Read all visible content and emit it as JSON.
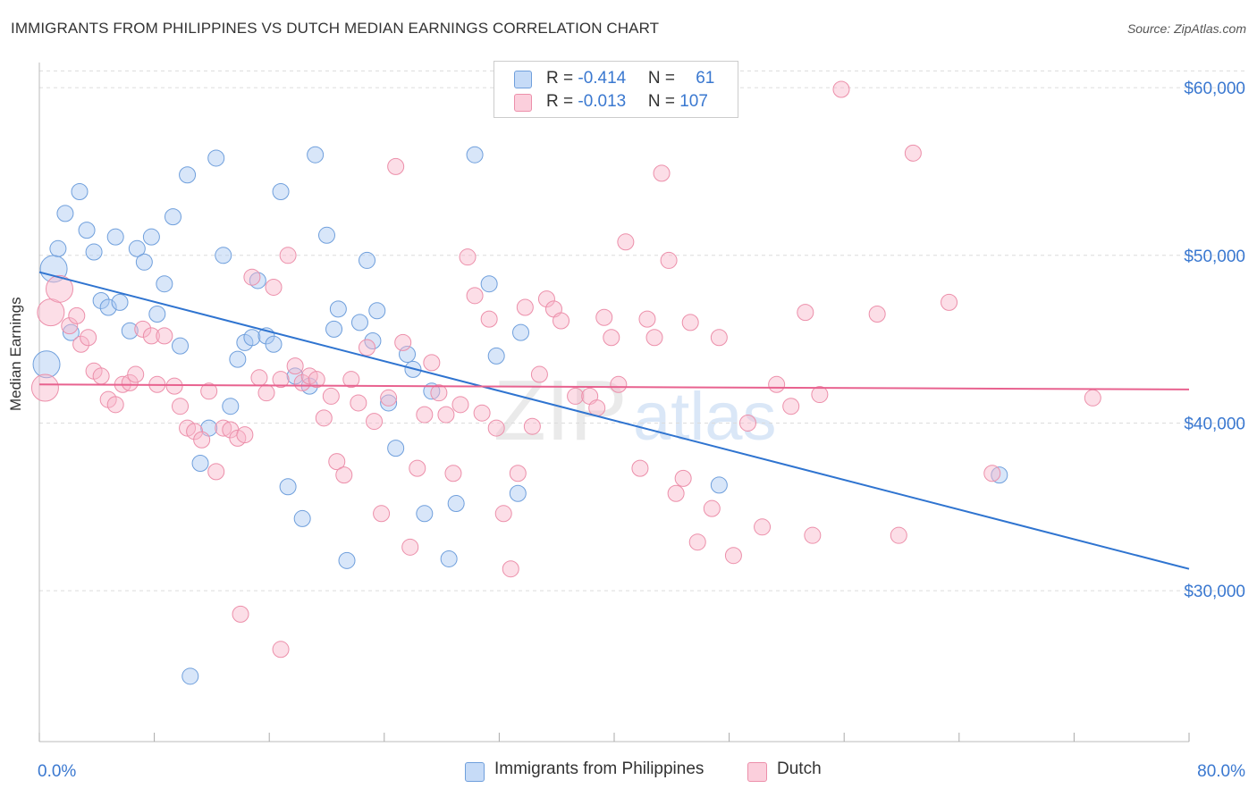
{
  "title": "IMMIGRANTS FROM PHILIPPINES VS DUTCH MEDIAN EARNINGS CORRELATION CHART",
  "source": "Source: ZipAtlas.com",
  "watermark": {
    "zip": "ZIP",
    "atlas": "atlas"
  },
  "legend": {
    "rows": [
      {
        "r_label": "R = ",
        "r_value": "-0.414",
        "n_label": "N = ",
        "n_value": "61",
        "color": "#a9c8f2"
      },
      {
        "r_label": "R = ",
        "r_value": "-0.013",
        "n_label": "N = ",
        "n_value": "107",
        "color": "#f8b6c9"
      }
    ]
  },
  "chart_data": {
    "type": "scatter",
    "title": "IMMIGRANTS FROM PHILIPPINES VS DUTCH MEDIAN EARNINGS CORRELATION CHART",
    "xlabel": "",
    "ylabel": "Median Earnings",
    "xlim": [
      0,
      80
    ],
    "ylim": [
      21000,
      61500
    ],
    "x_tick_labels": [
      "0.0%",
      "80.0%"
    ],
    "y_ticks": [
      30000,
      40000,
      50000,
      60000
    ],
    "y_tick_labels": [
      "$30,000",
      "$40,000",
      "$50,000",
      "$60,000"
    ],
    "grid": true,
    "legend_position": "top-center",
    "series": [
      {
        "name": "Immigrants from Philippines",
        "color": "#a9c8f2",
        "edge": "#6f9fdc",
        "trend": {
          "x": [
            0,
            80
          ],
          "y": [
            49000,
            31300
          ],
          "color": "#2f74d0"
        },
        "points": [
          [
            0.5,
            43500,
            1
          ],
          [
            1.0,
            49200,
            1
          ],
          [
            1.3,
            50400,
            0
          ],
          [
            1.8,
            52500,
            0
          ],
          [
            2.2,
            45400,
            0
          ],
          [
            2.8,
            53800,
            0
          ],
          [
            3.3,
            51500,
            0
          ],
          [
            3.8,
            50200,
            0
          ],
          [
            4.3,
            47300,
            0
          ],
          [
            4.8,
            46900,
            0
          ],
          [
            5.3,
            51100,
            0
          ],
          [
            5.6,
            47200,
            0
          ],
          [
            6.3,
            45500,
            0
          ],
          [
            6.8,
            50400,
            0
          ],
          [
            7.3,
            49600,
            0
          ],
          [
            7.8,
            51100,
            0
          ],
          [
            8.2,
            46500,
            0
          ],
          [
            8.7,
            48300,
            0
          ],
          [
            9.3,
            52300,
            0
          ],
          [
            9.8,
            44600,
            0
          ],
          [
            10.3,
            54800,
            0
          ],
          [
            11.2,
            37600,
            0
          ],
          [
            11.8,
            39700,
            0
          ],
          [
            12.3,
            55800,
            0
          ],
          [
            12.8,
            50000,
            0
          ],
          [
            13.3,
            41000,
            0
          ],
          [
            13.8,
            43800,
            0
          ],
          [
            14.3,
            44800,
            0
          ],
          [
            14.8,
            45100,
            0
          ],
          [
            15.2,
            48500,
            0
          ],
          [
            15.8,
            45200,
            0
          ],
          [
            16.3,
            44700,
            0
          ],
          [
            16.8,
            53800,
            0
          ],
          [
            17.3,
            36200,
            0
          ],
          [
            17.8,
            42800,
            0
          ],
          [
            18.3,
            34300,
            0
          ],
          [
            18.8,
            42200,
            0
          ],
          [
            19.2,
            56000,
            0
          ],
          [
            20.0,
            51200,
            0
          ],
          [
            20.5,
            45600,
            0
          ],
          [
            20.8,
            46800,
            0
          ],
          [
            21.4,
            31800,
            0
          ],
          [
            22.3,
            46000,
            0
          ],
          [
            22.8,
            49700,
            0
          ],
          [
            23.2,
            44900,
            0
          ],
          [
            23.5,
            46700,
            0
          ],
          [
            24.3,
            41200,
            0
          ],
          [
            24.8,
            38500,
            0
          ],
          [
            25.6,
            44100,
            0
          ],
          [
            26.0,
            43200,
            0
          ],
          [
            26.8,
            34600,
            0
          ],
          [
            27.3,
            41900,
            0
          ],
          [
            28.5,
            31900,
            0
          ],
          [
            29.0,
            35200,
            0
          ],
          [
            30.3,
            56000,
            0
          ],
          [
            31.3,
            48300,
            0
          ],
          [
            31.8,
            44000,
            0
          ],
          [
            33.3,
            35800,
            0
          ],
          [
            33.5,
            45400,
            0
          ],
          [
            47.3,
            36300,
            0
          ],
          [
            66.8,
            36900,
            0
          ],
          [
            10.5,
            24900,
            0
          ]
        ]
      },
      {
        "name": "Dutch",
        "color": "#f8b6c9",
        "edge": "#ec8faa",
        "trend": {
          "x": [
            0,
            80
          ],
          "y": [
            42300,
            42000
          ],
          "color": "#e8628f"
        },
        "points": [
          [
            0.4,
            42100,
            1
          ],
          [
            0.8,
            46600,
            1
          ],
          [
            1.4,
            48000,
            1
          ],
          [
            2.1,
            45800,
            0
          ],
          [
            2.6,
            46400,
            0
          ],
          [
            2.9,
            44700,
            0
          ],
          [
            3.4,
            45100,
            0
          ],
          [
            3.8,
            43100,
            0
          ],
          [
            4.3,
            42800,
            0
          ],
          [
            4.8,
            41400,
            0
          ],
          [
            5.3,
            41100,
            0
          ],
          [
            5.8,
            42300,
            0
          ],
          [
            6.3,
            42400,
            0
          ],
          [
            6.7,
            42900,
            0
          ],
          [
            7.2,
            45600,
            0
          ],
          [
            7.8,
            45200,
            0
          ],
          [
            8.2,
            42300,
            0
          ],
          [
            8.7,
            45200,
            0
          ],
          [
            9.4,
            42200,
            0
          ],
          [
            9.8,
            41000,
            0
          ],
          [
            10.3,
            39700,
            0
          ],
          [
            10.8,
            39500,
            0
          ],
          [
            11.3,
            39000,
            0
          ],
          [
            11.8,
            41900,
            0
          ],
          [
            12.3,
            37100,
            0
          ],
          [
            12.8,
            39700,
            0
          ],
          [
            13.3,
            39600,
            0
          ],
          [
            13.8,
            39100,
            0
          ],
          [
            14.3,
            39300,
            0
          ],
          [
            14.8,
            48700,
            0
          ],
          [
            15.3,
            42700,
            0
          ],
          [
            15.8,
            41800,
            0
          ],
          [
            16.3,
            48100,
            0
          ],
          [
            16.8,
            42600,
            0
          ],
          [
            17.3,
            50000,
            0
          ],
          [
            17.8,
            43400,
            0
          ],
          [
            18.3,
            42400,
            0
          ],
          [
            18.8,
            42800,
            0
          ],
          [
            19.3,
            42600,
            0
          ],
          [
            19.8,
            40300,
            0
          ],
          [
            20.3,
            41600,
            0
          ],
          [
            20.7,
            37700,
            0
          ],
          [
            21.2,
            36900,
            0
          ],
          [
            21.7,
            42600,
            0
          ],
          [
            22.2,
            41200,
            0
          ],
          [
            22.8,
            44500,
            0
          ],
          [
            23.3,
            40100,
            0
          ],
          [
            23.8,
            34600,
            0
          ],
          [
            24.3,
            41500,
            0
          ],
          [
            24.8,
            55300,
            0
          ],
          [
            25.3,
            44800,
            0
          ],
          [
            25.8,
            32600,
            0
          ],
          [
            26.3,
            37300,
            0
          ],
          [
            26.8,
            40500,
            0
          ],
          [
            27.3,
            43600,
            0
          ],
          [
            27.8,
            41800,
            0
          ],
          [
            28.3,
            40500,
            0
          ],
          [
            28.8,
            37000,
            0
          ],
          [
            29.3,
            41100,
            0
          ],
          [
            29.8,
            49900,
            0
          ],
          [
            30.3,
            47600,
            0
          ],
          [
            30.8,
            40600,
            0
          ],
          [
            31.3,
            46200,
            0
          ],
          [
            31.8,
            39700,
            0
          ],
          [
            32.3,
            34600,
            0
          ],
          [
            32.8,
            31300,
            0
          ],
          [
            33.3,
            37000,
            0
          ],
          [
            33.8,
            46900,
            0
          ],
          [
            34.3,
            39800,
            0
          ],
          [
            34.8,
            42900,
            0
          ],
          [
            35.3,
            47400,
            0
          ],
          [
            35.8,
            46800,
            0
          ],
          [
            36.3,
            46100,
            0
          ],
          [
            37.3,
            41600,
            0
          ],
          [
            38.3,
            41600,
            0
          ],
          [
            38.8,
            40900,
            0
          ],
          [
            39.3,
            46300,
            0
          ],
          [
            39.8,
            45100,
            0
          ],
          [
            40.3,
            42300,
            0
          ],
          [
            40.8,
            50800,
            0
          ],
          [
            41.8,
            37300,
            0
          ],
          [
            42.3,
            46200,
            0
          ],
          [
            42.8,
            45100,
            0
          ],
          [
            43.3,
            54900,
            0
          ],
          [
            43.8,
            49700,
            0
          ],
          [
            44.3,
            35800,
            0
          ],
          [
            44.8,
            36700,
            0
          ],
          [
            45.3,
            46000,
            0
          ],
          [
            45.8,
            32900,
            0
          ],
          [
            46.8,
            34900,
            0
          ],
          [
            47.3,
            45100,
            0
          ],
          [
            48.3,
            32100,
            0
          ],
          [
            49.3,
            40000,
            0
          ],
          [
            50.3,
            33800,
            0
          ],
          [
            51.3,
            42300,
            0
          ],
          [
            52.3,
            41000,
            0
          ],
          [
            53.3,
            46600,
            0
          ],
          [
            53.8,
            33300,
            0
          ],
          [
            54.3,
            41700,
            0
          ],
          [
            55.8,
            59900,
            0
          ],
          [
            58.3,
            46500,
            0
          ],
          [
            59.8,
            33300,
            0
          ],
          [
            60.8,
            56100,
            0
          ],
          [
            63.3,
            47200,
            0
          ],
          [
            66.3,
            37000,
            0
          ],
          [
            73.3,
            41500,
            0
          ],
          [
            14.0,
            28600,
            0
          ],
          [
            16.8,
            26500,
            0
          ]
        ]
      }
    ]
  }
}
